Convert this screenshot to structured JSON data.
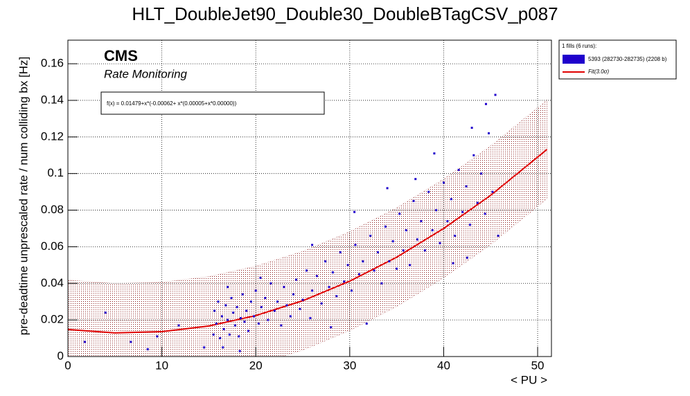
{
  "chart_data": {
    "type": "scatter",
    "title": "HLT_DoubleJet90_Double30_DoubleBTagCSV_p087",
    "x_label": "< PU >",
    "y_label": "pre-deadtime unprescaled rate / num colliding bx [Hz]",
    "experiment": "CMS",
    "subtitle": "Rate Monitoring",
    "fit_formula": "f(x) = 0.01479+x*(-0.00062+ x*(0.00005+x*0.00000))",
    "legend_title": "1 fills (6 runs):",
    "xlim": [
      0,
      51.47
    ],
    "ylim": [
      0,
      0.1729
    ],
    "xticks": [
      0,
      10,
      20,
      30,
      40,
      50
    ],
    "yticks": [
      0,
      0.02,
      0.04,
      0.06,
      0.08,
      0.1,
      0.12,
      0.14,
      0.16
    ],
    "grid": true,
    "series": [
      {
        "name": "5393 (282730-282735) (2208 b)",
        "color": "#1f00cc",
        "x": [
          1.8,
          4,
          6.7,
          8.5,
          9.5,
          11.8,
          14.5,
          15.5,
          15.6,
          15.8,
          16,
          16.2,
          16.4,
          16.6,
          16.8,
          17,
          17.2,
          17.4,
          17.6,
          17.8,
          18,
          18.2,
          18.4,
          18.6,
          18.8,
          19,
          19.2,
          19.5,
          19.8,
          20,
          20.3,
          20.6,
          21,
          21.3,
          21.6,
          22,
          22.3,
          22.7,
          23,
          23.3,
          23.7,
          24,
          24.3,
          24.7,
          25,
          25.4,
          25.8,
          26,
          26.5,
          27,
          27.4,
          27.8,
          28.2,
          28.6,
          29,
          29.4,
          29.8,
          30.2,
          30.6,
          31,
          31.4,
          31.8,
          32.2,
          32.6,
          33,
          33.4,
          33.8,
          34.2,
          34.6,
          35,
          35.3,
          35.7,
          36,
          36.4,
          36.8,
          37.2,
          37.6,
          38,
          38.4,
          38.8,
          39.2,
          39.6,
          40,
          40.4,
          40.8,
          41.2,
          41.6,
          42,
          42.4,
          42.8,
          43.2,
          43.6,
          44,
          44.4,
          44.8,
          45.2,
          45.5,
          45.8,
          44.5,
          43,
          42.5,
          39,
          37,
          34,
          30.5,
          26,
          20.5,
          16.5,
          17,
          18.3,
          28,
          41
        ],
        "values": [
          0.008,
          0.024,
          0.008,
          0.004,
          0.011,
          0.017,
          0.005,
          0.012,
          0.025,
          0.018,
          0.03,
          0.01,
          0.022,
          0.015,
          0.028,
          0.02,
          0.012,
          0.032,
          0.024,
          0.017,
          0.027,
          0.011,
          0.021,
          0.034,
          0.019,
          0.025,
          0.014,
          0.03,
          0.022,
          0.036,
          0.018,
          0.027,
          0.032,
          0.02,
          0.04,
          0.025,
          0.03,
          0.017,
          0.038,
          0.028,
          0.022,
          0.034,
          0.042,
          0.026,
          0.031,
          0.047,
          0.021,
          0.036,
          0.044,
          0.029,
          0.052,
          0.038,
          0.046,
          0.033,
          0.057,
          0.041,
          0.05,
          0.036,
          0.061,
          0.045,
          0.052,
          0.018,
          0.066,
          0.047,
          0.057,
          0.04,
          0.071,
          0.052,
          0.063,
          0.048,
          0.078,
          0.058,
          0.069,
          0.05,
          0.085,
          0.064,
          0.074,
          0.058,
          0.09,
          0.069,
          0.08,
          0.062,
          0.095,
          0.074,
          0.086,
          0.066,
          0.102,
          0.079,
          0.093,
          0.072,
          0.11,
          0.084,
          0.1,
          0.078,
          0.122,
          0.09,
          0.143,
          0.066,
          0.138,
          0.125,
          0.054,
          0.111,
          0.097,
          0.092,
          0.079,
          0.061,
          0.043,
          0.005,
          0.038,
          0.003,
          0.016,
          0.051
        ]
      },
      {
        "name": "Fit(3.0σ)",
        "color": "#e00000",
        "type": "line",
        "x": [
          0,
          5,
          10,
          15,
          20,
          25,
          30,
          35,
          40,
          45,
          51
        ],
        "values": [
          0.0148,
          0.0129,
          0.0136,
          0.0167,
          0.0224,
          0.0305,
          0.0412,
          0.0543,
          0.07,
          0.0881,
          0.1132
        ],
        "band_lower": [
          -0.0122,
          -0.0141,
          -0.0134,
          -0.0103,
          -0.0046,
          0.0035,
          0.0142,
          0.0273,
          0.043,
          0.0611,
          0.0862
        ],
        "band_upper": [
          0.0418,
          0.0399,
          0.0406,
          0.0437,
          0.0494,
          0.0575,
          0.0682,
          0.0813,
          0.097,
          0.1151,
          0.1402
        ],
        "band_color": "#8b1a1a"
      }
    ]
  }
}
